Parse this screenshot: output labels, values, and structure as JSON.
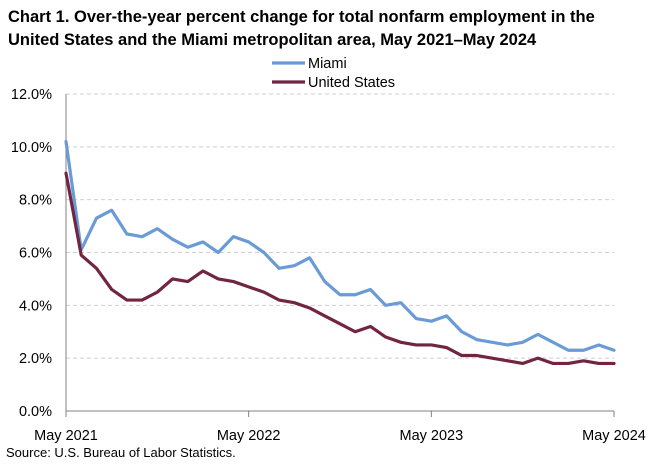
{
  "title": "Chart 1. Over-the-year percent change for total nonfarm employment in the United States and the Miami metropolitan area, May 2021–May 2024",
  "source": "Source: U.S. Bureau of Labor Statistics.",
  "chart_data": {
    "type": "line",
    "title": "Chart 1. Over-the-year percent change for total nonfarm employment in the United States and the Miami metropolitan area, May 2021–May 2024",
    "xlabel": "",
    "ylabel": "",
    "ylim": [
      0,
      12
    ],
    "yticks": [
      "0.0%",
      "2.0%",
      "4.0%",
      "6.0%",
      "8.0%",
      "10.0%",
      "12.0%"
    ],
    "xtick_labels": [
      "May 2021",
      "May 2022",
      "May 2023",
      "May 2024"
    ],
    "grid": true,
    "legend_position": "top-center",
    "x": [
      "May 2021",
      "Jun 2021",
      "Jul 2021",
      "Aug 2021",
      "Sep 2021",
      "Oct 2021",
      "Nov 2021",
      "Dec 2021",
      "Jan 2022",
      "Feb 2022",
      "Mar 2022",
      "Apr 2022",
      "May 2022",
      "Jun 2022",
      "Jul 2022",
      "Aug 2022",
      "Sep 2022",
      "Oct 2022",
      "Nov 2022",
      "Dec 2022",
      "Jan 2023",
      "Feb 2023",
      "Mar 2023",
      "Apr 2023",
      "May 2023",
      "Jun 2023",
      "Jul 2023",
      "Aug 2023",
      "Sep 2023",
      "Oct 2023",
      "Nov 2023",
      "Dec 2023",
      "Jan 2024",
      "Feb 2024",
      "Mar 2024",
      "Apr 2024",
      "May 2024"
    ],
    "series": [
      {
        "name": "Miami",
        "color": "#6b9bd6",
        "values": [
          10.2,
          6.1,
          7.3,
          7.6,
          6.7,
          6.6,
          6.9,
          6.5,
          6.2,
          6.4,
          6.0,
          6.6,
          6.4,
          6.0,
          5.4,
          5.5,
          5.8,
          4.9,
          4.4,
          4.4,
          4.6,
          4.0,
          4.1,
          3.5,
          3.4,
          3.6,
          3.0,
          2.7,
          2.6,
          2.5,
          2.6,
          2.9,
          2.6,
          2.3,
          2.3,
          2.5,
          2.3
        ]
      },
      {
        "name": "United States",
        "color": "#722543",
        "values": [
          9.0,
          5.9,
          5.4,
          4.6,
          4.2,
          4.2,
          4.5,
          5.0,
          4.9,
          5.3,
          5.0,
          4.9,
          4.7,
          4.5,
          4.2,
          4.1,
          3.9,
          3.6,
          3.3,
          3.0,
          3.2,
          2.8,
          2.6,
          2.5,
          2.5,
          2.4,
          2.1,
          2.1,
          2.0,
          1.9,
          1.8,
          2.0,
          1.8,
          1.8,
          1.9,
          1.8,
          1.8
        ]
      }
    ]
  }
}
